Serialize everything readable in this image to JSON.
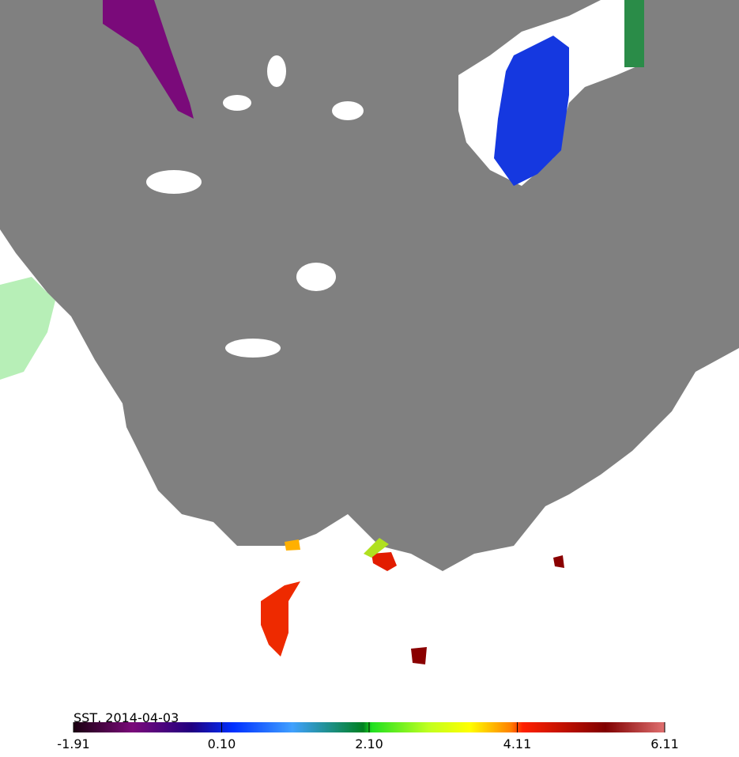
{
  "colorbar": {
    "title": "SST, 2014-04-03",
    "range": [
      -1.91,
      6.11
    ],
    "ticks": [
      -1.91,
      {
        "value": 0.1,
        "label": "0.10"
      },
      {
        "value": 2.1,
        "label": "2.10"
      },
      4.11,
      6.11
    ]
  }
}
